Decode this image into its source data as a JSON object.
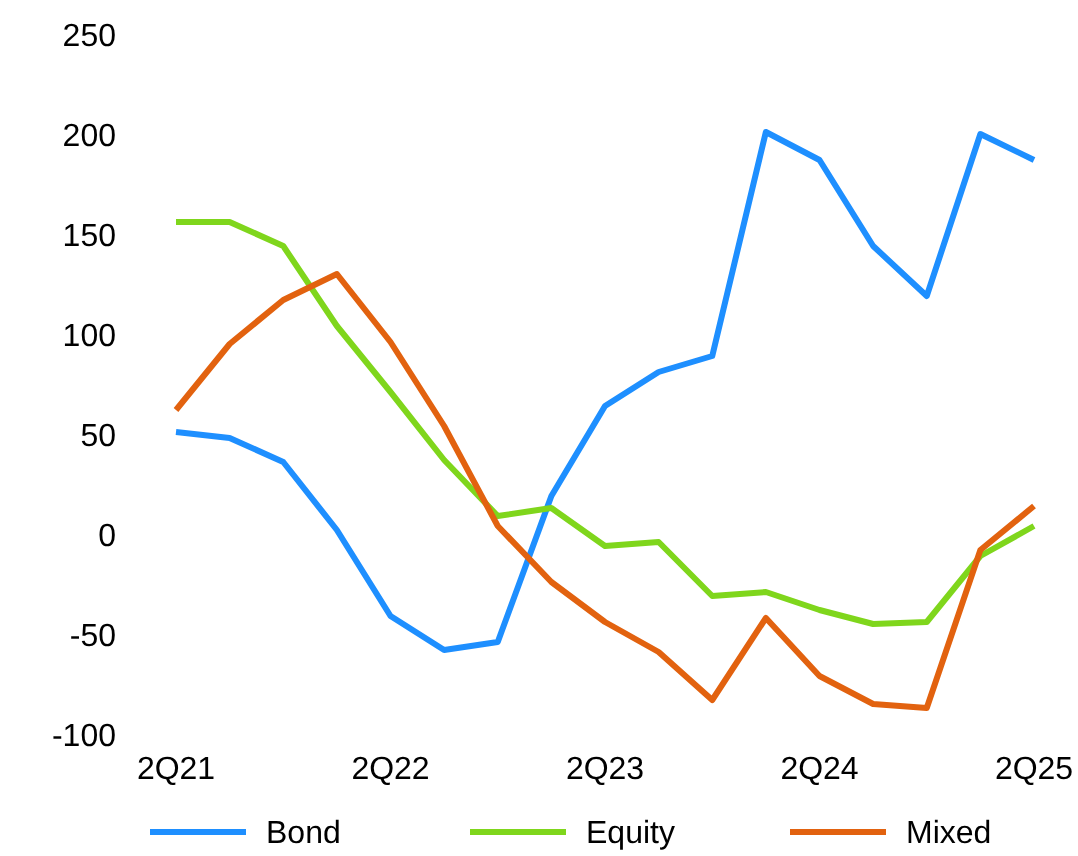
{
  "chart_data": {
    "type": "line",
    "categories": [
      "2Q21",
      null,
      null,
      null,
      "2Q22",
      null,
      null,
      null,
      "2Q23",
      null,
      null,
      null,
      "2Q24",
      null,
      null,
      null,
      "2Q25"
    ],
    "series": [
      {
        "name": "Bond",
        "color": "#1e8fff",
        "values": [
          52,
          49,
          37,
          3,
          -40,
          -57,
          -53,
          20,
          65,
          82,
          90,
          202,
          188,
          145,
          120,
          201,
          188
        ]
      },
      {
        "name": "Equity",
        "color": "#7fd61c",
        "values": [
          157,
          157,
          145,
          105,
          72,
          38,
          10,
          14,
          -5,
          -3,
          -30,
          -28,
          -37,
          -44,
          -43,
          -10,
          5
        ]
      },
      {
        "name": "Mixed",
        "color": "#e2620f",
        "values": [
          63,
          96,
          118,
          131,
          97,
          55,
          5,
          -23,
          -43,
          -58,
          -82,
          -41,
          -70,
          -84,
          -86,
          -7,
          15
        ]
      }
    ],
    "ylim": [
      -100,
      250
    ],
    "yticks": [
      -100,
      -50,
      0,
      50,
      100,
      150,
      200,
      250
    ],
    "grid": false,
    "legend": "bottom",
    "line_style": "solid",
    "marker": "none"
  }
}
